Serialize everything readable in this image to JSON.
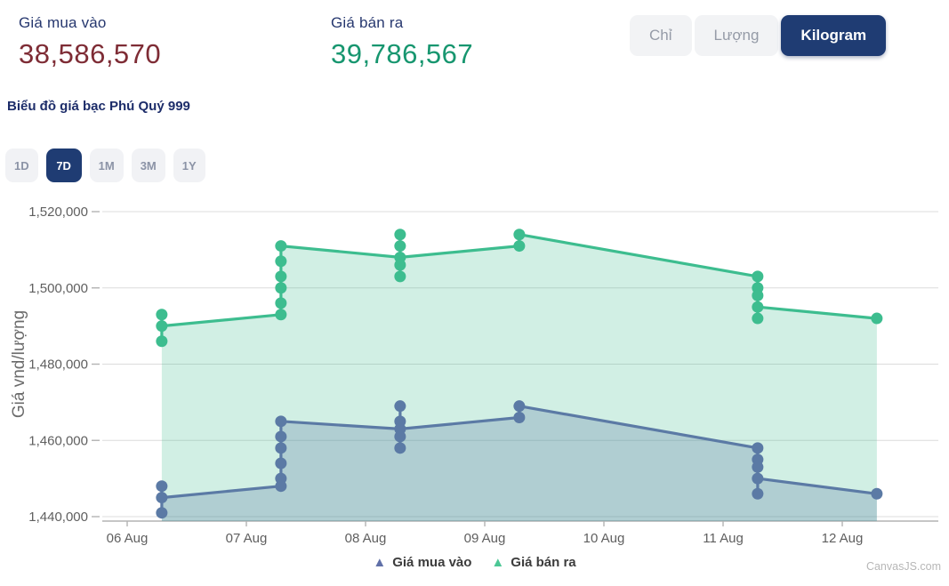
{
  "header": {
    "buy": {
      "label": "Giá mua vào",
      "value": "38,586,570",
      "color": "#7e2c35"
    },
    "sell": {
      "label": "Giá bán ra",
      "value": "39,786,567",
      "color": "#17966f"
    },
    "subtitle": "Biểu đồ giá bạc Phú Quý 999",
    "unit_toggle": {
      "options": [
        {
          "label": "Chỉ",
          "active": false
        },
        {
          "label": "Lượng",
          "active": false
        },
        {
          "label": "Kilogram",
          "active": true
        }
      ]
    }
  },
  "ranges": [
    {
      "label": "1D",
      "active": false
    },
    {
      "label": "7D",
      "active": true
    },
    {
      "label": "1M",
      "active": false
    },
    {
      "label": "3M",
      "active": false
    },
    {
      "label": "1Y",
      "active": false
    }
  ],
  "legend": [
    {
      "name": "Giá mua vào",
      "color": "#6070a8"
    },
    {
      "name": "Giá bán ra",
      "color": "#4cc795"
    }
  ],
  "watermark": "CanvasJS.com",
  "chart_data": {
    "type": "line",
    "subtype": "line + scatter clusters with translucent area fill to baseline",
    "title": "Biểu đồ giá bạc Phú Quý 999",
    "xlabel": "",
    "ylabel": "Giá vnd/lượng",
    "x_labels": [
      "06 Aug",
      "07 Aug",
      "08 Aug",
      "09 Aug",
      "10 Aug",
      "11 Aug",
      "12 Aug"
    ],
    "ylim": [
      1440000,
      1520000
    ],
    "grid": true,
    "legend_position": "bottom",
    "y_ticks": [
      {
        "value": 1440000,
        "label": "1,440,000"
      },
      {
        "value": 1460000,
        "label": "1,460,000"
      },
      {
        "value": 1480000,
        "label": "1,480,000"
      },
      {
        "value": 1500000,
        "label": "1,500,000"
      },
      {
        "value": 1520000,
        "label": "1,520,000"
      }
    ],
    "series": [
      {
        "name": "Giá mua vào",
        "color": "#5b7aa5",
        "fill": "rgba(91,122,165,0.28)",
        "legend_color": "#6070a8",
        "clusters": [
          {
            "x": 0.29,
            "dots": [
              1448000,
              1445000,
              1441000
            ],
            "entry": 1448000,
            "exit": 1445000
          },
          {
            "x": 1.29,
            "dots": [
              1465000,
              1461000,
              1458000,
              1454000,
              1450000,
              1448000
            ],
            "entry": 1448000,
            "exit": 1465000
          },
          {
            "x": 2.29,
            "dots": [
              1469000,
              1465000,
              1463000,
              1461000,
              1458000
            ],
            "entry": 1463000,
            "exit": 1463000
          },
          {
            "x": 3.29,
            "dots": [
              1469000,
              1466000
            ],
            "entry": 1466000,
            "exit": 1469000
          },
          {
            "x": 5.29,
            "dots": [
              1458000,
              1455000,
              1453000,
              1450000,
              1446000
            ],
            "entry": 1458000,
            "exit": 1450000
          },
          {
            "x": 6.29,
            "dots": [
              1446000
            ],
            "entry": 1446000,
            "exit": 1446000
          }
        ]
      },
      {
        "name": "Giá bán ra",
        "color": "#3dbd8f",
        "fill": "rgba(61,189,143,0.24)",
        "legend_color": "#4cc795",
        "clusters": [
          {
            "x": 0.29,
            "dots": [
              1493000,
              1490000,
              1486000
            ],
            "entry": 1493000,
            "exit": 1490000
          },
          {
            "x": 1.29,
            "dots": [
              1511000,
              1507000,
              1503000,
              1500000,
              1496000,
              1493000
            ],
            "entry": 1493000,
            "exit": 1511000
          },
          {
            "x": 2.29,
            "dots": [
              1514000,
              1511000,
              1508000,
              1506000,
              1503000
            ],
            "entry": 1508000,
            "exit": 1508000
          },
          {
            "x": 3.29,
            "dots": [
              1514000,
              1511000
            ],
            "entry": 1511000,
            "exit": 1514000
          },
          {
            "x": 5.29,
            "dots": [
              1503000,
              1500000,
              1498000,
              1495000,
              1492000
            ],
            "entry": 1503000,
            "exit": 1495000
          },
          {
            "x": 6.29,
            "dots": [
              1492000
            ],
            "entry": 1492000,
            "exit": 1492000
          }
        ]
      }
    ]
  }
}
